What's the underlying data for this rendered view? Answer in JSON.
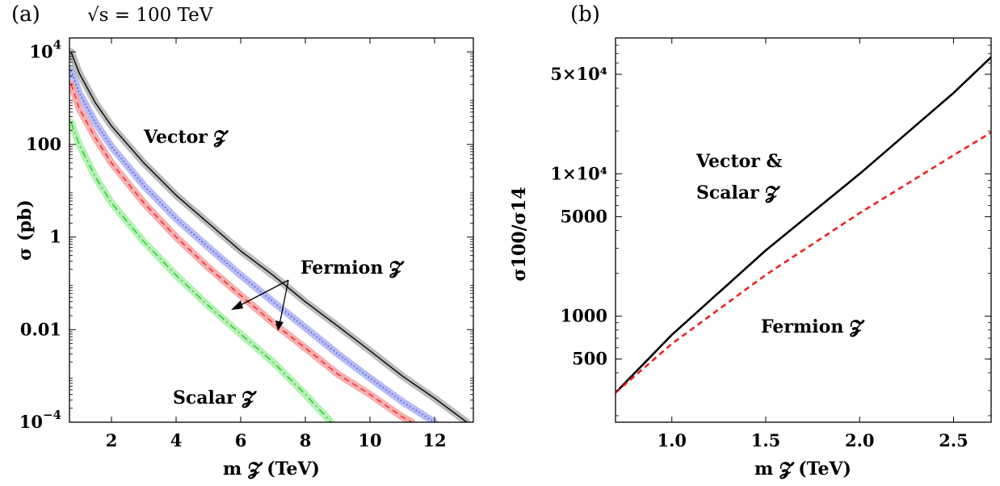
{
  "chart_data": [
    {
      "panel": "(a)",
      "type": "line",
      "header": "√s = 100 TeV",
      "xlabel": "m 𝓩 (TeV)",
      "ylabel": "σ (pb)",
      "xlim": [
        0.7,
        13.2
      ],
      "ylim": [
        0.0001,
        20000
      ],
      "yscale": "log",
      "xticks": [
        "2",
        "4",
        "6",
        "8",
        "10",
        "12"
      ],
      "yticks": [
        {
          "value": 0.0001,
          "base": "10",
          "exp": "−4"
        },
        {
          "value": 0.01,
          "label": "0.01"
        },
        {
          "value": 1,
          "label": "1"
        },
        {
          "value": 100,
          "label": "100"
        },
        {
          "value": 10000,
          "base": "10",
          "exp": "4"
        }
      ],
      "series": [
        {
          "style": "solid",
          "color": "#000000",
          "band": "#b0b0b0",
          "x": [
            0.75,
            1,
            1.5,
            2,
            3,
            4,
            5,
            6,
            7,
            8,
            9,
            10,
            11,
            12,
            13
          ],
          "y": [
            10000,
            3500,
            800,
            250,
            40,
            8,
            2,
            0.5,
            0.15,
            0.04,
            0.012,
            0.0035,
            0.001,
            0.00033,
            0.0001
          ]
        },
        {
          "style": "dotted",
          "color": "#3344dd",
          "band": "#aab0f5",
          "x": [
            0.75,
            1,
            1.5,
            2,
            3,
            4,
            5,
            6,
            7,
            8,
            9,
            10,
            11,
            12
          ],
          "y": [
            4000,
            1300,
            300,
            90,
            13,
            2.5,
            0.6,
            0.15,
            0.04,
            0.011,
            0.003,
            0.0009,
            0.00028,
            0.0001
          ]
        },
        {
          "style": "dashed",
          "color": "#ee2222",
          "band": "#f6a0a0",
          "x": [
            0.75,
            1,
            1.5,
            2,
            3,
            4,
            5,
            6,
            7,
            8,
            9,
            10,
            11,
            11.3
          ],
          "y": [
            2000,
            600,
            140,
            40,
            5.5,
            1.0,
            0.22,
            0.055,
            0.014,
            0.004,
            0.0011,
            0.0004,
            0.00013,
            0.0001
          ]
        },
        {
          "style": "dash-dot",
          "color": "#22cc22",
          "band": "#a8eea8",
          "x": [
            0.75,
            1,
            1.5,
            2,
            3,
            4,
            5,
            6,
            7,
            8,
            8.8
          ],
          "y": [
            300,
            100,
            20,
            5.5,
            0.8,
            0.15,
            0.033,
            0.008,
            0.002,
            0.0004,
            0.0001
          ]
        }
      ],
      "annotations": {
        "vector": "Vector 𝓩",
        "fermion": "Fermion 𝓩",
        "scalar": "Scalar 𝓩"
      }
    },
    {
      "panel": "(b)",
      "type": "line",
      "xlabel": "m 𝓩 (TeV)",
      "ylabel": "σ100/σ14",
      "xlim": [
        0.7,
        2.7
      ],
      "ylim": [
        180,
        90000
      ],
      "yscale": "log",
      "xticks": [
        "1.0",
        "1.5",
        "2.0",
        "2.5"
      ],
      "yticks": [
        {
          "value": 500,
          "label": "500"
        },
        {
          "value": 1000,
          "label": "1000"
        },
        {
          "value": 5000,
          "label": "5000"
        },
        {
          "value": 10000,
          "label": "1×10⁴"
        },
        {
          "value": 50000,
          "label": "5×10⁴"
        }
      ],
      "series": [
        {
          "style": "solid",
          "color": "#000000",
          "x": [
            0.7,
            1.0,
            1.5,
            2.0,
            2.5,
            2.7
          ],
          "y": [
            290,
            740,
            2900,
            10000,
            37000,
            66000
          ]
        },
        {
          "style": "dashed",
          "color": "#ee2222",
          "x": [
            0.7,
            1.0,
            1.5,
            2.0,
            2.5,
            2.7
          ],
          "y": [
            290,
            640,
            1950,
            5300,
            13500,
            19500
          ]
        }
      ],
      "annotations": {
        "vector_scalar_1": "Vector &",
        "vector_scalar_2": "Scalar 𝓩",
        "fermion": "Fermion 𝓩"
      }
    }
  ]
}
